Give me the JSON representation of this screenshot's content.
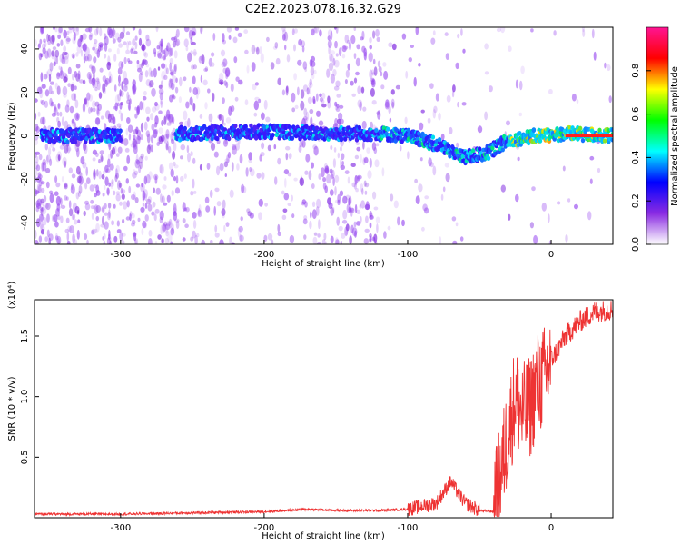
{
  "title": "C2E2.2023.078.16.32.G29",
  "colors": {
    "snr_line": "#ee3333",
    "frame": "#000000"
  },
  "chart_data": [
    {
      "type": "heatmap",
      "name": "spectrogram",
      "xlabel": "Height of straight line (km)",
      "ylabel": "Frequency (Hz)",
      "xlim": [
        -360,
        43
      ],
      "ylim": [
        -50,
        50
      ],
      "x_ticks": [
        -300,
        -200,
        -100,
        0
      ],
      "y_ticks": [
        -40,
        -20,
        0,
        20,
        40
      ],
      "colorbar": {
        "label": "Normalized spectral amplitude",
        "range": [
          0,
          1
        ],
        "ticks": [
          "0.0",
          "0.2",
          "0.4",
          "0.6",
          "0.8"
        ],
        "colormap": [
          "#ffffff",
          "#8a2be2",
          "#0000ff",
          "#00ffff",
          "#00ff00",
          "#ffff00",
          "#ff0000",
          "#ff1493"
        ]
      },
      "signal_track": {
        "x": [
          -355,
          -300,
          -260,
          -200,
          -150,
          -120,
          -100,
          -80,
          -60,
          -45,
          -30,
          -10,
          10,
          43
        ],
        "y": [
          0,
          0,
          1,
          2,
          1,
          1,
          0,
          -4,
          -10,
          -8,
          -2,
          0,
          1,
          0
        ]
      }
    },
    {
      "type": "line",
      "name": "snr",
      "xlabel": "Height of straight line (km)",
      "ylabel": "SNR (10 * v/v)",
      "scale_note": "(x10⁴)",
      "xlim": [
        -360,
        43
      ],
      "ylim": [
        0,
        1.8
      ],
      "x_ticks": [
        -300,
        -200,
        -100,
        0
      ],
      "y_ticks": [
        "0.5",
        "1.0",
        "1.5"
      ],
      "x": [
        -360,
        -300,
        -250,
        -200,
        -170,
        -150,
        -120,
        -100,
        -80,
        -70,
        -60,
        -50,
        -40,
        -30,
        -25,
        -20,
        -15,
        -10,
        -5,
        0,
        10,
        20,
        30,
        43
      ],
      "values": [
        0.03,
        0.03,
        0.04,
        0.05,
        0.07,
        0.06,
        0.06,
        0.07,
        0.12,
        0.3,
        0.12,
        0.06,
        0.05,
        0.7,
        1.0,
        0.85,
        0.9,
        1.1,
        1.15,
        1.3,
        1.5,
        1.62,
        1.7,
        1.72
      ]
    }
  ]
}
